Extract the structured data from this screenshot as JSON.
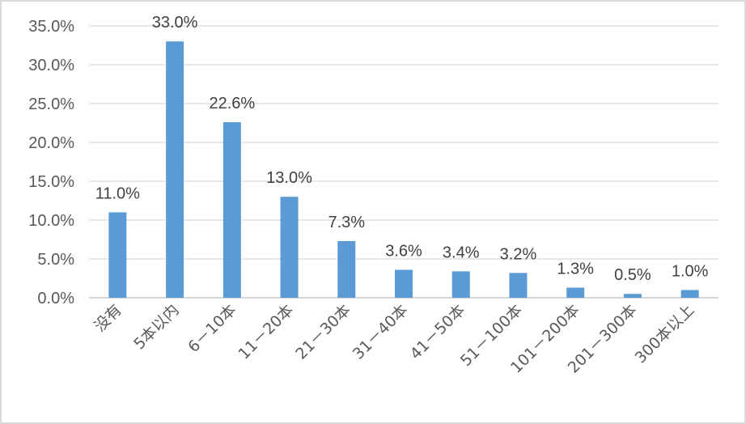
{
  "chart_data": {
    "type": "bar",
    "categories": [
      "没有",
      "5本以内",
      "6－10本",
      "11－20本",
      "21－30本",
      "31－40本",
      "41－50本",
      "51－100本",
      "101－200本",
      "201－300本",
      "300本以上"
    ],
    "values": [
      11.0,
      33.0,
      22.6,
      13.0,
      7.3,
      3.6,
      3.4,
      3.2,
      1.3,
      0.5,
      1.0
    ],
    "data_labels": [
      "11.0%",
      "33.0%",
      "22.6%",
      "13.0%",
      "7.3%",
      "3.6%",
      "3.4%",
      "3.2%",
      "1.3%",
      "0.5%",
      "1.0%"
    ],
    "y_ticks": [
      "0.0%",
      "5.0%",
      "10.0%",
      "15.0%",
      "20.0%",
      "25.0%",
      "30.0%",
      "35.0%"
    ],
    "ylim": [
      0,
      35
    ],
    "grid": true,
    "legend": "none",
    "bar_color": "#5b9bd5",
    "title": "",
    "xlabel": "",
    "ylabel": ""
  }
}
